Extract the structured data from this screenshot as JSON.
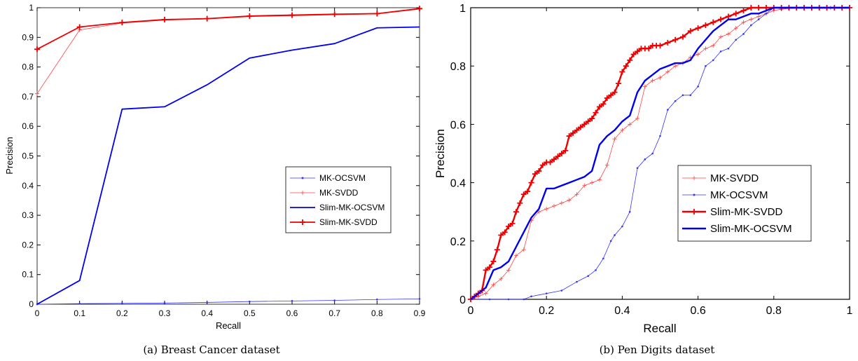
{
  "chart_data": [
    {
      "type": "line",
      "caption": "(a)  Breast Cancer dataset",
      "xlabel": "Recall",
      "ylabel": "Precision",
      "xlim": [
        0,
        0.9
      ],
      "ylim": [
        0,
        1
      ],
      "xticks": [
        "0",
        "0.1",
        "0.2",
        "0.3",
        "0.4",
        "0.5",
        "0.6",
        "0.7",
        "0.8",
        "0.9"
      ],
      "yticks": [
        "0",
        "0.1",
        "0.2",
        "0.3",
        "0.4",
        "0.5",
        "0.6",
        "0.7",
        "0.8",
        "0.9",
        "1"
      ],
      "grid": false,
      "legend_position": "center-right",
      "series": [
        {
          "name": "MK-OCSVM",
          "color": "#3333ff",
          "marker": "dot",
          "bold": false,
          "x": [
            0,
            0.1,
            0.2,
            0.3,
            0.4,
            0.5,
            0.6,
            0.7,
            0.8,
            0.9
          ],
          "y": [
            0.0,
            0.002,
            0.003,
            0.004,
            0.006,
            0.009,
            0.011,
            0.013,
            0.016,
            0.018
          ]
        },
        {
          "name": "MK-SVDD",
          "color": "#ff4444",
          "marker": "plus",
          "bold": false,
          "x": [
            0,
            0.1,
            0.2,
            0.3,
            0.4,
            0.5,
            0.6,
            0.7,
            0.8,
            0.9
          ],
          "y": [
            0.71,
            0.925,
            0.948,
            0.958,
            0.962,
            0.97,
            0.973,
            0.976,
            0.979,
            0.995
          ]
        },
        {
          "name": "Slim-MK-OCSVM",
          "color": "#0000ee",
          "marker": "none",
          "bold": true,
          "x": [
            0,
            0.1,
            0.2,
            0.3,
            0.4,
            0.5,
            0.6,
            0.7,
            0.8,
            0.9
          ],
          "y": [
            0.0,
            0.08,
            0.658,
            0.666,
            0.74,
            0.83,
            0.857,
            0.879,
            0.932,
            0.935
          ]
        },
        {
          "name": "Slim-MK-SVDD",
          "color": "#ee0000",
          "marker": "plus",
          "bold": true,
          "x": [
            0,
            0.1,
            0.2,
            0.3,
            0.4,
            0.5,
            0.6,
            0.7,
            0.8,
            0.9
          ],
          "y": [
            0.86,
            0.935,
            0.95,
            0.96,
            0.963,
            0.972,
            0.975,
            0.978,
            0.98,
            0.997
          ]
        }
      ]
    },
    {
      "type": "line",
      "caption": "(b)  Pen Digits dataset",
      "xlabel": "Recall",
      "ylabel": "Precision",
      "xlim": [
        0,
        1
      ],
      "ylim": [
        0,
        1
      ],
      "xticks": [
        "0",
        "0.2",
        "0.4",
        "0.6",
        "0.8",
        "1"
      ],
      "yticks": [
        "0",
        "0.2",
        "0.4",
        "0.6",
        "0.8",
        "1"
      ],
      "grid": false,
      "legend_position": "center-right",
      "series": [
        {
          "name": "MK-SVDD",
          "color": "#ff4444",
          "marker": "plus",
          "bold": false,
          "x": [
            0,
            0.02,
            0.04,
            0.06,
            0.08,
            0.1,
            0.12,
            0.14,
            0.16,
            0.18,
            0.2,
            0.22,
            0.24,
            0.26,
            0.28,
            0.3,
            0.32,
            0.34,
            0.36,
            0.38,
            0.4,
            0.42,
            0.44,
            0.46,
            0.48,
            0.5,
            0.52,
            0.54,
            0.56,
            0.58,
            0.6,
            0.62,
            0.64,
            0.66,
            0.68,
            0.7,
            0.72,
            0.74,
            0.76,
            0.78,
            0.8,
            0.82,
            0.86,
            0.9,
            0.95,
            1.0
          ],
          "y": [
            0,
            0.01,
            0.02,
            0.05,
            0.07,
            0.1,
            0.15,
            0.17,
            0.27,
            0.3,
            0.31,
            0.32,
            0.33,
            0.34,
            0.36,
            0.39,
            0.4,
            0.41,
            0.46,
            0.55,
            0.58,
            0.6,
            0.62,
            0.73,
            0.75,
            0.76,
            0.78,
            0.8,
            0.81,
            0.83,
            0.84,
            0.86,
            0.87,
            0.9,
            0.91,
            0.93,
            0.95,
            0.96,
            0.97,
            0.98,
            0.99,
            0.995,
            1.0,
            1.0,
            1.0,
            1.0
          ]
        },
        {
          "name": "MK-OCSVM",
          "color": "#3333ff",
          "marker": "dot",
          "bold": false,
          "x": [
            0,
            0.05,
            0.1,
            0.14,
            0.16,
            0.2,
            0.24,
            0.28,
            0.31,
            0.33,
            0.35,
            0.37,
            0.38,
            0.4,
            0.42,
            0.44,
            0.46,
            0.48,
            0.5,
            0.52,
            0.54,
            0.56,
            0.58,
            0.6,
            0.62,
            0.64,
            0.66,
            0.68,
            0.7,
            0.72,
            0.74,
            0.76,
            0.78,
            0.8,
            0.85,
            0.9,
            0.95,
            1.0
          ],
          "y": [
            0,
            0,
            0,
            0.0,
            0.01,
            0.02,
            0.03,
            0.06,
            0.08,
            0.1,
            0.14,
            0.2,
            0.22,
            0.25,
            0.3,
            0.45,
            0.48,
            0.5,
            0.56,
            0.65,
            0.68,
            0.7,
            0.7,
            0.73,
            0.8,
            0.82,
            0.85,
            0.86,
            0.89,
            0.91,
            0.94,
            0.96,
            0.98,
            1.0,
            1.0,
            1.0,
            1.0,
            1.0
          ]
        },
        {
          "name": "Slim-MK-SVDD",
          "color": "#ee0000",
          "marker": "plus",
          "bold": true,
          "x": [
            0,
            0.01,
            0.02,
            0.03,
            0.04,
            0.05,
            0.06,
            0.07,
            0.08,
            0.09,
            0.1,
            0.11,
            0.12,
            0.13,
            0.14,
            0.15,
            0.16,
            0.17,
            0.18,
            0.19,
            0.2,
            0.21,
            0.22,
            0.23,
            0.24,
            0.25,
            0.26,
            0.27,
            0.28,
            0.29,
            0.3,
            0.31,
            0.32,
            0.33,
            0.34,
            0.35,
            0.36,
            0.37,
            0.38,
            0.39,
            0.4,
            0.41,
            0.42,
            0.43,
            0.44,
            0.45,
            0.46,
            0.47,
            0.48,
            0.49,
            0.5,
            0.52,
            0.54,
            0.56,
            0.58,
            0.6,
            0.62,
            0.64,
            0.66,
            0.68,
            0.7,
            0.72,
            0.74,
            0.76,
            0.78,
            0.8,
            0.82,
            0.84,
            0.86,
            0.88,
            0.9,
            0.92,
            0.94,
            0.96,
            0.98,
            1.0
          ],
          "y": [
            0,
            0.01,
            0.02,
            0.03,
            0.1,
            0.11,
            0.13,
            0.17,
            0.22,
            0.23,
            0.25,
            0.26,
            0.3,
            0.33,
            0.36,
            0.37,
            0.4,
            0.43,
            0.44,
            0.46,
            0.47,
            0.47,
            0.48,
            0.49,
            0.5,
            0.51,
            0.56,
            0.57,
            0.58,
            0.59,
            0.6,
            0.61,
            0.62,
            0.64,
            0.66,
            0.67,
            0.69,
            0.7,
            0.71,
            0.74,
            0.78,
            0.8,
            0.82,
            0.84,
            0.85,
            0.86,
            0.86,
            0.86,
            0.87,
            0.87,
            0.87,
            0.88,
            0.89,
            0.9,
            0.92,
            0.93,
            0.94,
            0.95,
            0.96,
            0.97,
            0.98,
            0.99,
            1.0,
            1.0,
            1.0,
            1.0,
            1.0,
            1.0,
            1.0,
            1.0,
            1.0,
            1.0,
            1.0,
            1.0,
            1.0,
            1.0
          ]
        },
        {
          "name": "Slim-MK-OCSVM",
          "color": "#0000ee",
          "marker": "none",
          "bold": true,
          "x": [
            0,
            0.02,
            0.04,
            0.06,
            0.08,
            0.1,
            0.12,
            0.14,
            0.16,
            0.18,
            0.2,
            0.22,
            0.24,
            0.26,
            0.28,
            0.3,
            0.32,
            0.34,
            0.36,
            0.38,
            0.4,
            0.42,
            0.44,
            0.46,
            0.48,
            0.5,
            0.52,
            0.54,
            0.56,
            0.58,
            0.6,
            0.62,
            0.64,
            0.66,
            0.68,
            0.7,
            0.72,
            0.74,
            0.76,
            0.78,
            0.8,
            0.85,
            0.9,
            0.95,
            1.0
          ],
          "y": [
            0,
            0.02,
            0.04,
            0.1,
            0.11,
            0.13,
            0.18,
            0.23,
            0.28,
            0.31,
            0.38,
            0.38,
            0.39,
            0.4,
            0.41,
            0.42,
            0.44,
            0.53,
            0.56,
            0.58,
            0.61,
            0.63,
            0.71,
            0.75,
            0.77,
            0.79,
            0.8,
            0.81,
            0.81,
            0.82,
            0.86,
            0.89,
            0.92,
            0.94,
            0.96,
            0.96,
            0.97,
            0.98,
            0.98,
            0.99,
            1.0,
            1.0,
            1.0,
            1.0,
            1.0
          ]
        }
      ]
    }
  ]
}
